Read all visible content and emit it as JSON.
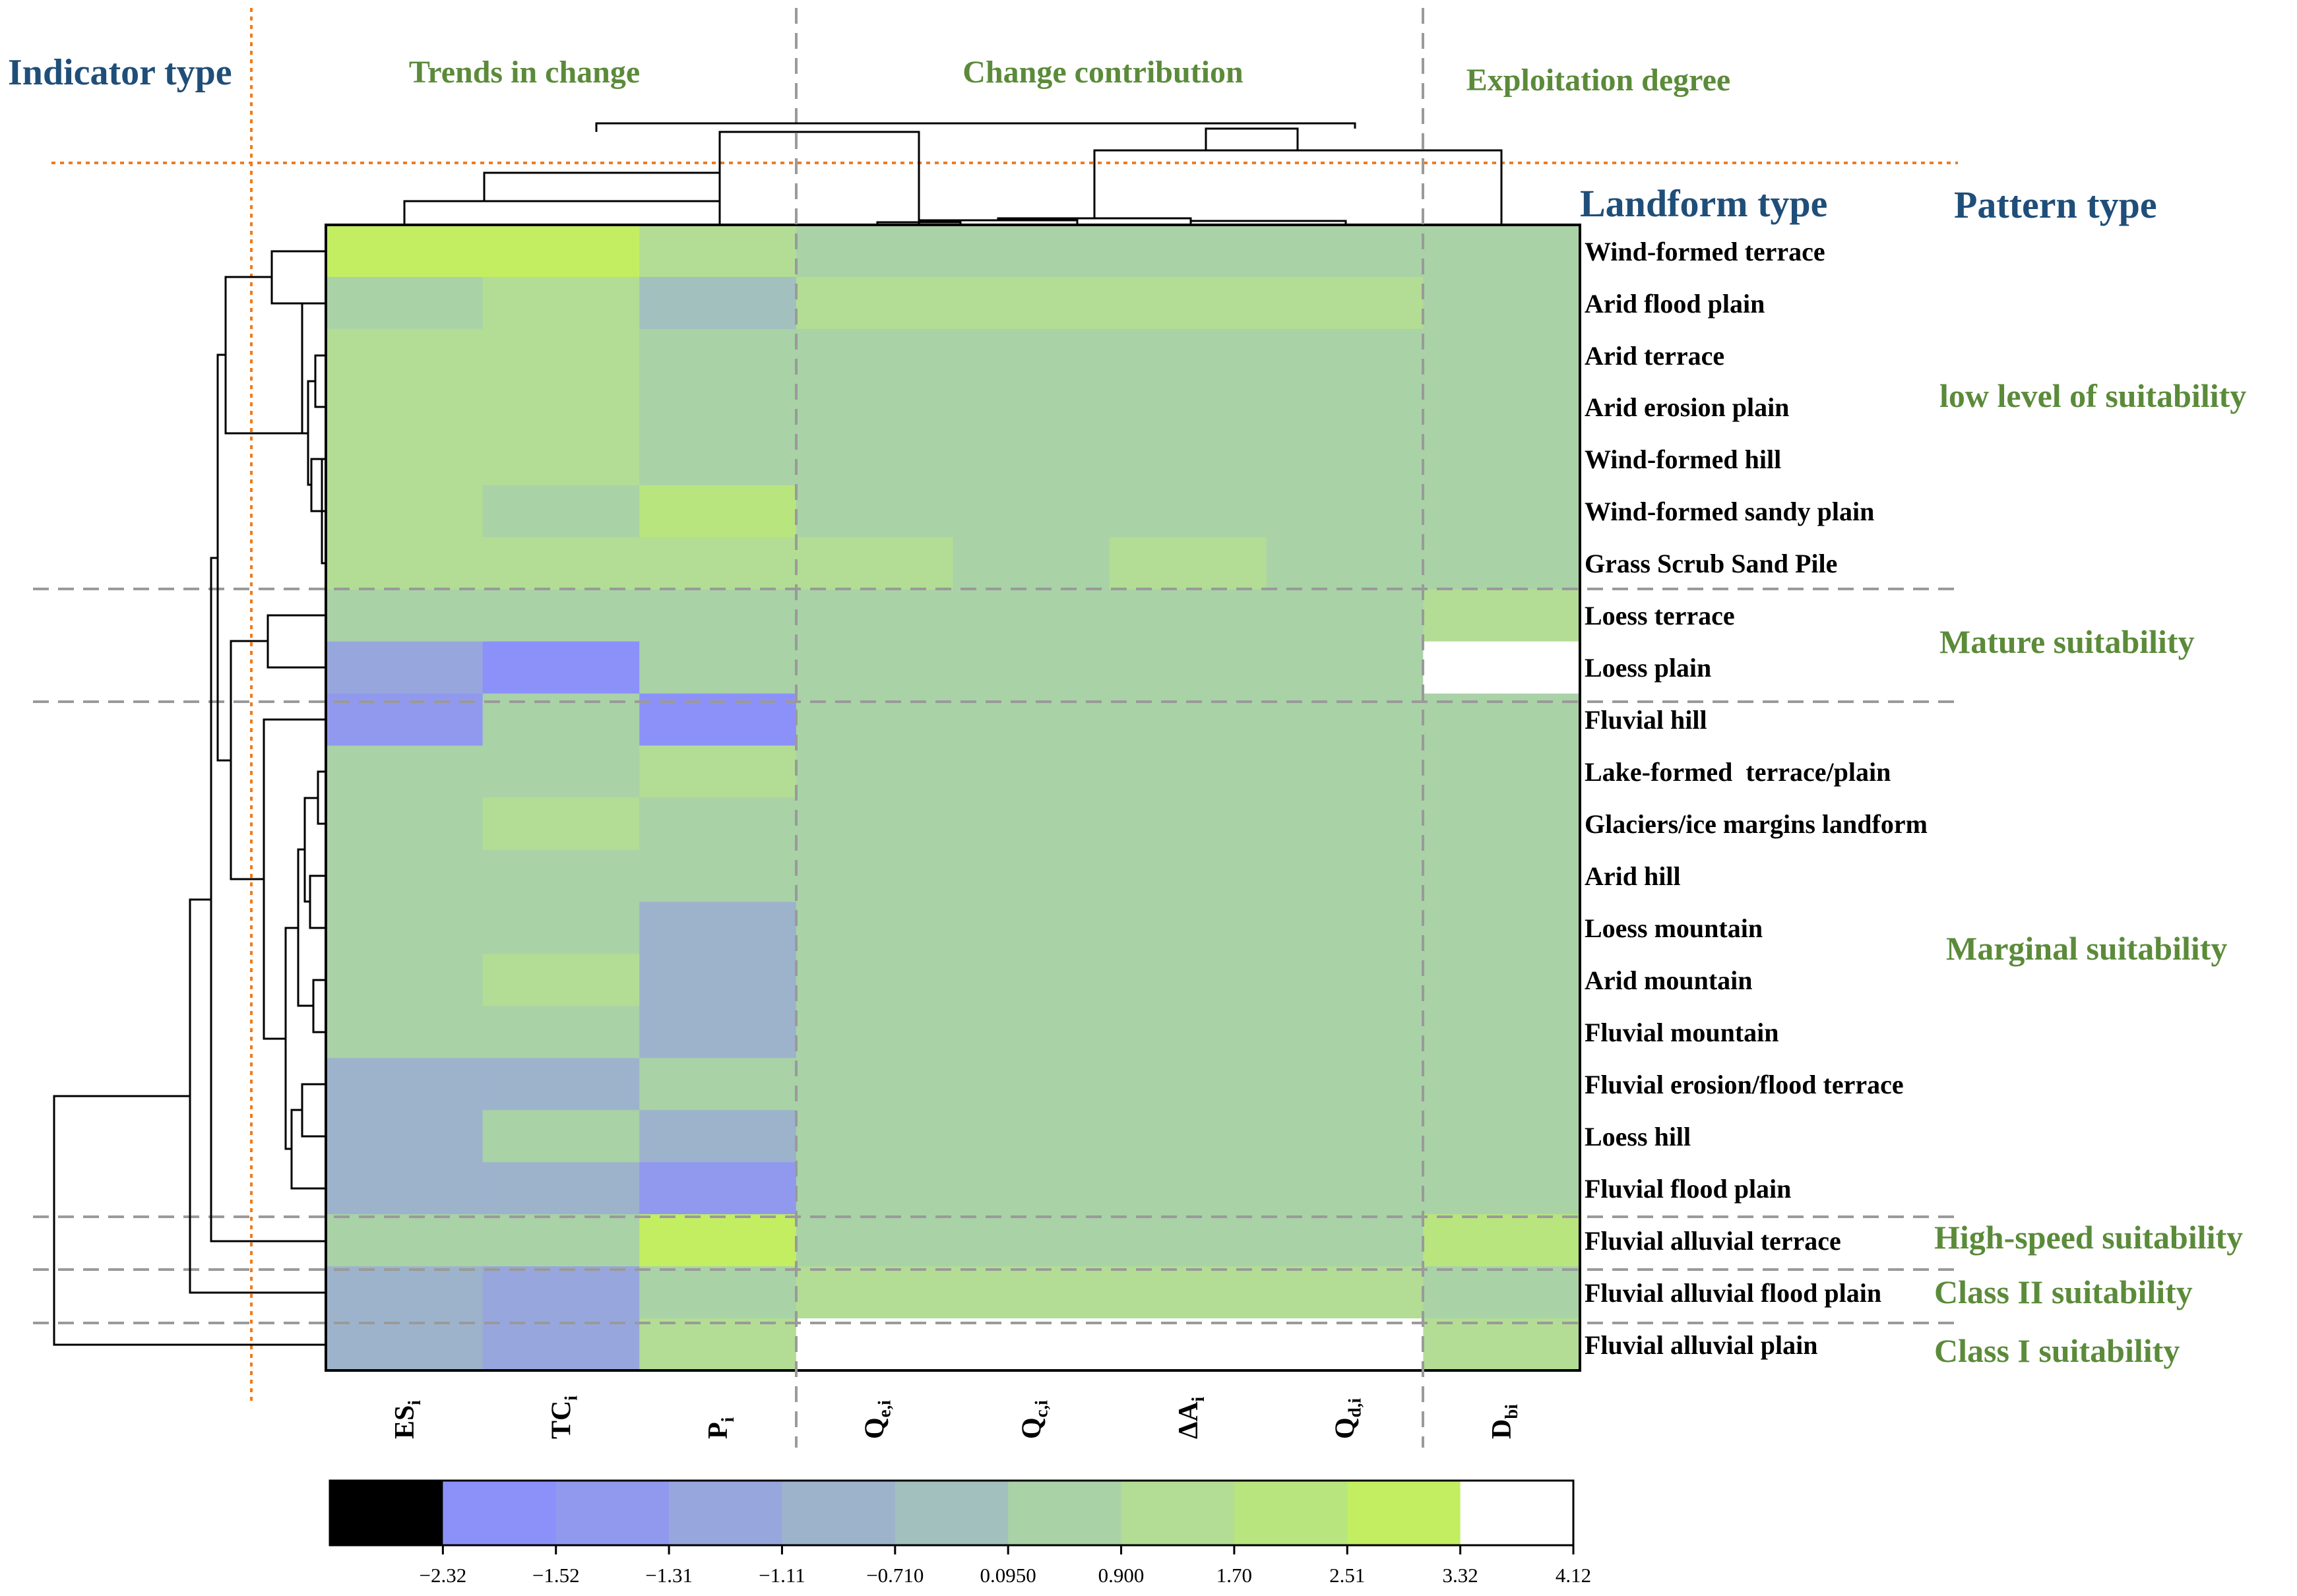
{
  "chart_data": {
    "type": "heatmap",
    "indicator_type_title": "Indicator type",
    "landform_type_title": "Landform type",
    "pattern_type_title": "Pattern type",
    "column_groups": [
      {
        "label": "Trends in change"
      },
      {
        "label": "Change contribution"
      },
      {
        "label": "Exploitation degree"
      }
    ],
    "columns": [
      {
        "base": "ES",
        "sub": "i"
      },
      {
        "base": "TC",
        "sub": "i"
      },
      {
        "base": "P",
        "sub": "i"
      },
      {
        "base": "Q",
        "sub": "e,i"
      },
      {
        "base": "Q",
        "sub": "c,i"
      },
      {
        "base": "ΔA",
        "sub": "i"
      },
      {
        "base": "Q",
        "sub": "d,i"
      },
      {
        "base": "D",
        "sub": "bi"
      }
    ],
    "rows": [
      "Wind-formed terrace",
      "Arid flood plain",
      "Arid terrace",
      "Arid erosion plain",
      "Wind-formed hill",
      "Wind-formed sandy plain",
      "Grass Scrub Sand Pile",
      "Loess terrace",
      "Loess plain",
      "Fluvial hill",
      "Lake-formed  terrace/plain",
      "Glaciers/ice margins landform",
      "Arid hill",
      "Loess mountain",
      "Arid mountain",
      "Fluvial mountain",
      "Fluvial erosion/flood terrace",
      "Loess hill",
      "Fluvial flood plain",
      "Fluvial alluvial terrace",
      "Fluvial alluvial flood plain",
      "Fluvial alluvial plain"
    ],
    "values": [
      [
        2.9,
        2.9,
        1.3,
        0.5,
        0.5,
        0.5,
        0.5,
        0.5
      ],
      [
        0.5,
        1.3,
        -0.3,
        1.3,
        1.3,
        1.3,
        1.3,
        0.5
      ],
      [
        1.3,
        1.3,
        0.5,
        0.5,
        0.5,
        0.5,
        0.5,
        0.5
      ],
      [
        1.3,
        1.3,
        0.5,
        0.5,
        0.5,
        0.5,
        0.5,
        0.5
      ],
      [
        1.3,
        1.3,
        0.5,
        0.5,
        0.5,
        0.5,
        0.5,
        0.5
      ],
      [
        1.3,
        0.5,
        2.1,
        0.5,
        0.5,
        0.5,
        0.5,
        0.5
      ],
      [
        1.3,
        1.3,
        1.3,
        1.3,
        0.5,
        1.3,
        0.5,
        0.5
      ],
      [
        0.5,
        0.5,
        0.5,
        0.5,
        0.5,
        0.5,
        0.5,
        1.3
      ],
      [
        -1.2,
        -1.9,
        0.5,
        0.5,
        0.5,
        0.5,
        0.5,
        3.7
      ],
      [
        -1.4,
        0.5,
        -1.9,
        0.5,
        0.5,
        0.5,
        0.5,
        0.5
      ],
      [
        0.5,
        0.5,
        1.3,
        0.5,
        0.5,
        0.5,
        0.5,
        0.5
      ],
      [
        0.5,
        1.3,
        0.5,
        0.5,
        0.5,
        0.5,
        0.5,
        0.5
      ],
      [
        0.5,
        0.5,
        0.5,
        0.5,
        0.5,
        0.5,
        0.5,
        0.5
      ],
      [
        0.5,
        0.5,
        -0.9,
        0.5,
        0.5,
        0.5,
        0.5,
        0.5
      ],
      [
        0.5,
        1.3,
        -0.9,
        0.5,
        0.5,
        0.5,
        0.5,
        0.5
      ],
      [
        0.5,
        0.5,
        -0.9,
        0.5,
        0.5,
        0.5,
        0.5,
        0.5
      ],
      [
        -0.9,
        -0.9,
        0.5,
        0.5,
        0.5,
        0.5,
        0.5,
        0.5
      ],
      [
        -0.9,
        0.5,
        -0.9,
        0.5,
        0.5,
        0.5,
        0.5,
        0.5
      ],
      [
        -0.9,
        -0.9,
        -1.4,
        0.5,
        0.5,
        0.5,
        0.5,
        0.5
      ],
      [
        0.5,
        0.5,
        2.9,
        0.5,
        0.5,
        0.5,
        0.5,
        2.1
      ],
      [
        -0.9,
        -1.2,
        0.5,
        1.3,
        1.3,
        1.3,
        1.3,
        0.5
      ],
      [
        -0.9,
        -1.2,
        1.3,
        3.7,
        3.7,
        3.7,
        3.7,
        1.3
      ]
    ],
    "pattern_types": [
      {
        "label": "low level of suitability",
        "rows": [
          0,
          6
        ]
      },
      {
        "label": "Mature suitability",
        "rows": [
          7,
          8
        ]
      },
      {
        "label": "Marginal suitability",
        "rows": [
          9,
          18
        ]
      },
      {
        "label": "High-speed suitability",
        "rows": [
          19,
          19
        ]
      },
      {
        "label": "Class II suitability",
        "rows": [
          20,
          20
        ]
      },
      {
        "label": "Class I suitability",
        "rows": [
          21,
          21
        ]
      }
    ],
    "colorbar": {
      "breaks": [
        -2.32,
        -1.52,
        -1.31,
        -1.11,
        -0.71,
        0.095,
        0.9,
        1.7,
        2.51,
        3.32,
        4.12
      ],
      "tick_labels": [
        "−2.32",
        "−1.52",
        "−1.31",
        "−1.11",
        "−0.710",
        "0.0950",
        "0.900",
        "1.70",
        "2.51",
        "3.32",
        "4.12"
      ],
      "colors": [
        "#000000",
        "#8c91f9",
        "#9199ee",
        "#97a7dd",
        "#9db3cc",
        "#a2c0be",
        "#a9d2a7",
        "#b3dd94",
        "#b9e57f",
        "#c3ee62",
        "#ffffff"
      ]
    }
  }
}
